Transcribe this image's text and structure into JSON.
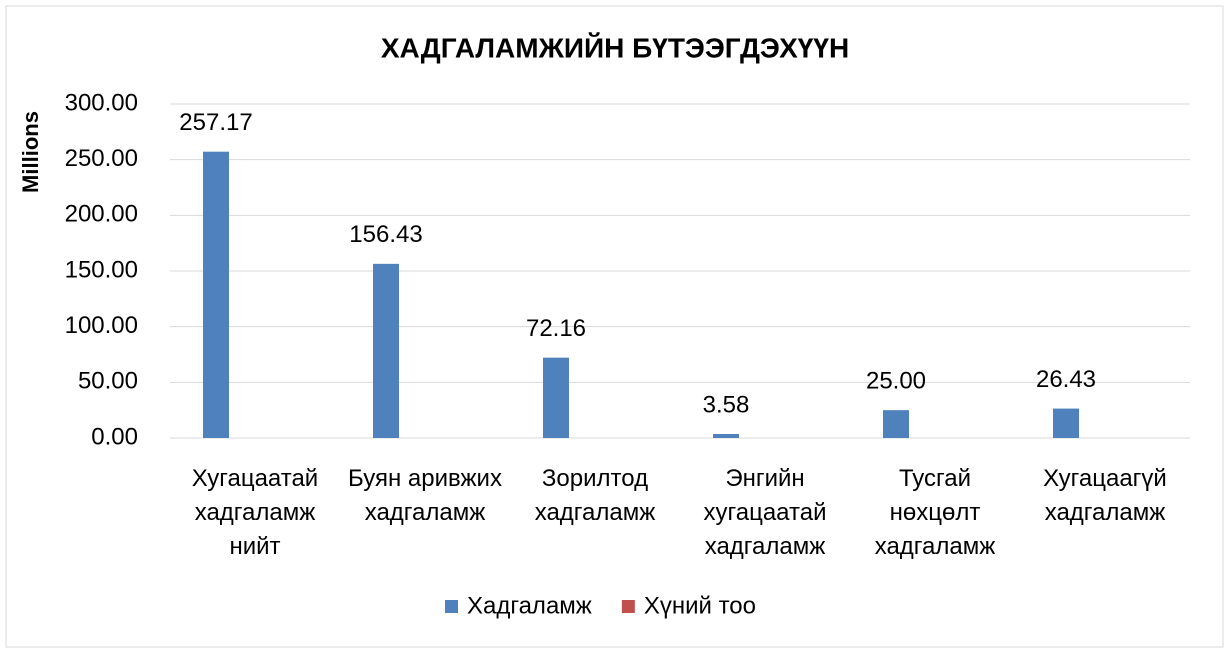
{
  "chart_data": {
    "type": "bar",
    "title": "ХАДГАЛАМЖИЙН БҮТЭЭГДЭХҮҮН",
    "y_label": "Millions",
    "categories": [
      "Хугацаатай хадгаламж нийт",
      "Буян аривжих хадгаламж",
      "Зорилтод хадгаламж",
      "Энгийн хугацаатай хадгаламж",
      "Тусгай нөхцөлт хадгаламж",
      "Хугацаагүй хадгаламж"
    ],
    "series": [
      {
        "name": "Хадгаламж",
        "color": "#4f81bd",
        "values": [
          257.17,
          156.43,
          72.16,
          3.58,
          25.0,
          26.43
        ],
        "value_labels": [
          "257.17",
          "156.43",
          "72.16",
          "3.58",
          "25.00",
          "26.43"
        ]
      },
      {
        "name": "Хүний тоо",
        "color": "#c0504d",
        "values": [
          0,
          0,
          0,
          0,
          0,
          0
        ]
      }
    ],
    "ylim": [
      0,
      300
    ],
    "yticks": [
      {
        "value": 0,
        "label": "0.00"
      },
      {
        "value": 50,
        "label": "50.00"
      },
      {
        "value": 100,
        "label": "100.00"
      },
      {
        "value": 150,
        "label": "150.00"
      },
      {
        "value": 200,
        "label": "200.00"
      },
      {
        "value": 250,
        "label": "250.00"
      },
      {
        "value": 300,
        "label": "300.00"
      }
    ],
    "grid": true,
    "legend": "bottom"
  }
}
